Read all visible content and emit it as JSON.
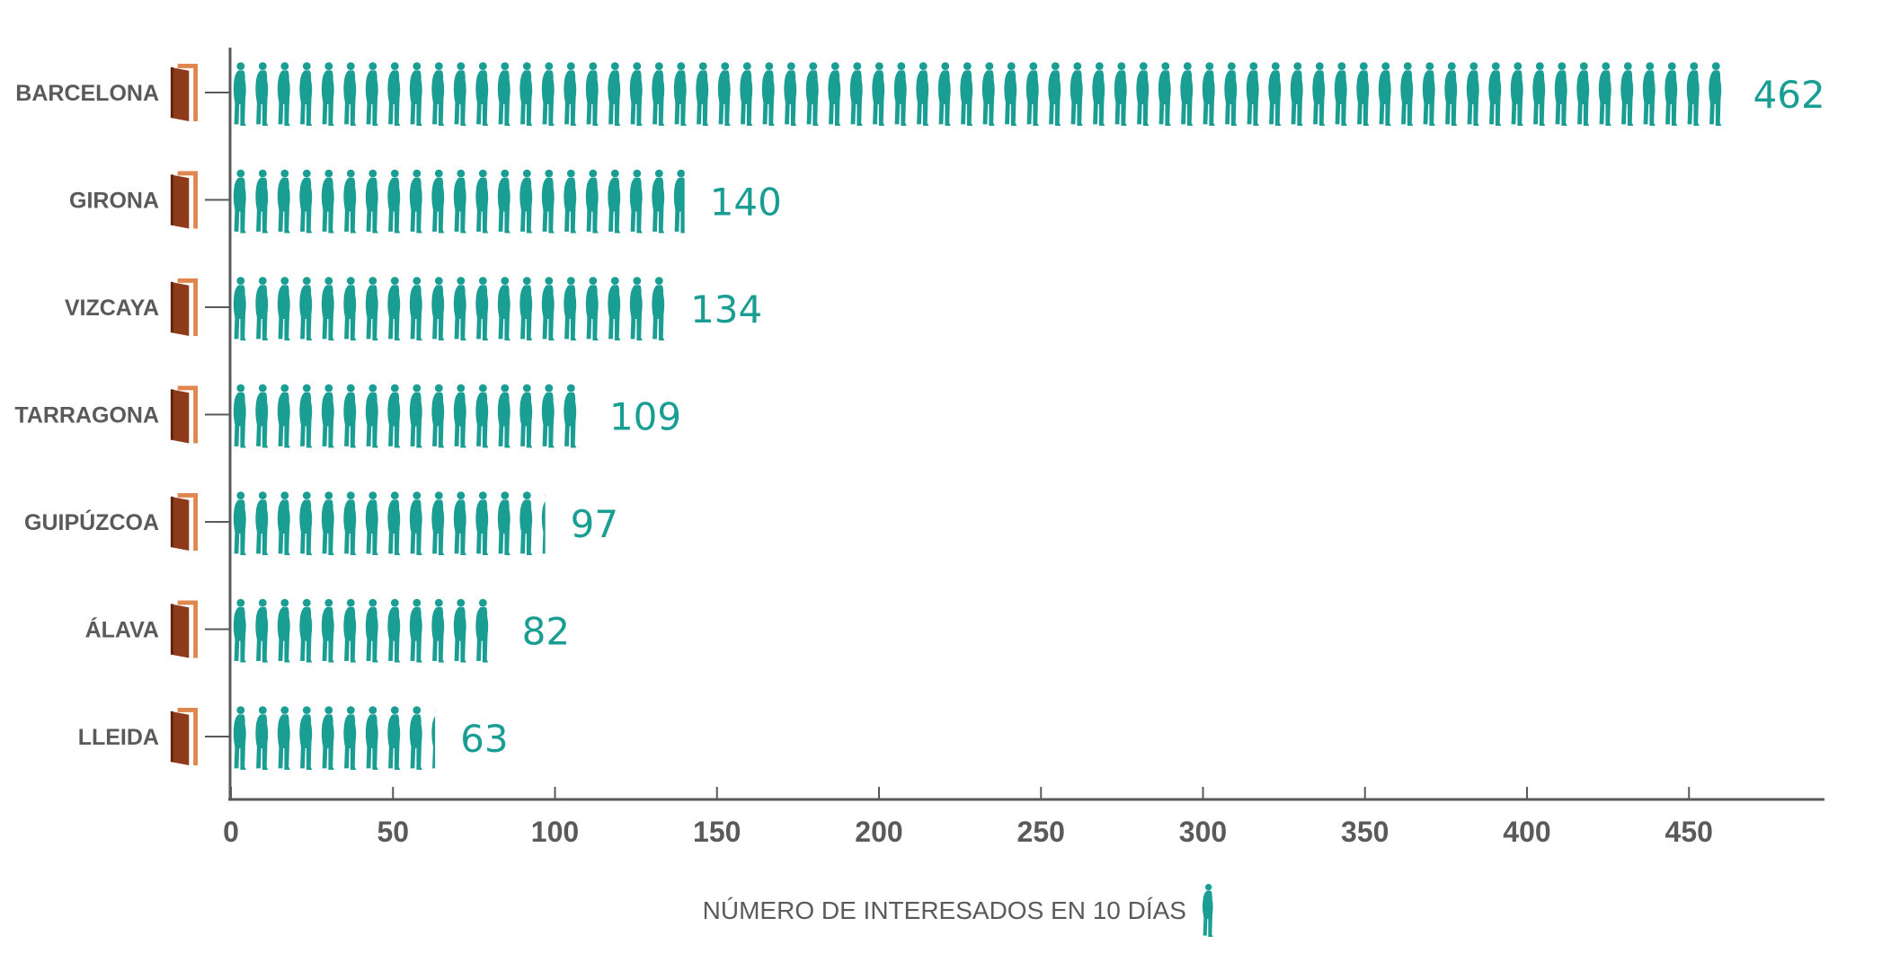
{
  "chart_data": {
    "type": "bar",
    "orientation": "horizontal",
    "categories": [
      "BARCELONA",
      "GIRONA",
      "VIZCAYA",
      "TARRAGONA",
      "GUIPÚZCOA",
      "ÁLAVA",
      "LLEIDA"
    ],
    "values": [
      462,
      140,
      134,
      109,
      97,
      82,
      63
    ],
    "data_labels": [
      "462",
      "140",
      "134",
      "109",
      "97",
      "82",
      "63"
    ],
    "xlabel": "NÚMERO DE INTERESADOS EN 10 DÍAS",
    "ylabel": "",
    "xlim": [
      0,
      490
    ],
    "xticks": [
      "0",
      "50",
      "100",
      "150",
      "200",
      "250",
      "300",
      "350",
      "400",
      "450"
    ],
    "grid": false,
    "legend": "none",
    "icons": {
      "category_icon": "door-icon",
      "unit_icon": "person-icon"
    },
    "colors": {
      "bar": "#1a9e94",
      "value_label": "#1a9e94",
      "axis": "#5a5a5a",
      "door_frame": "#e0874f",
      "door_leaf": "#8e3b1c"
    }
  }
}
